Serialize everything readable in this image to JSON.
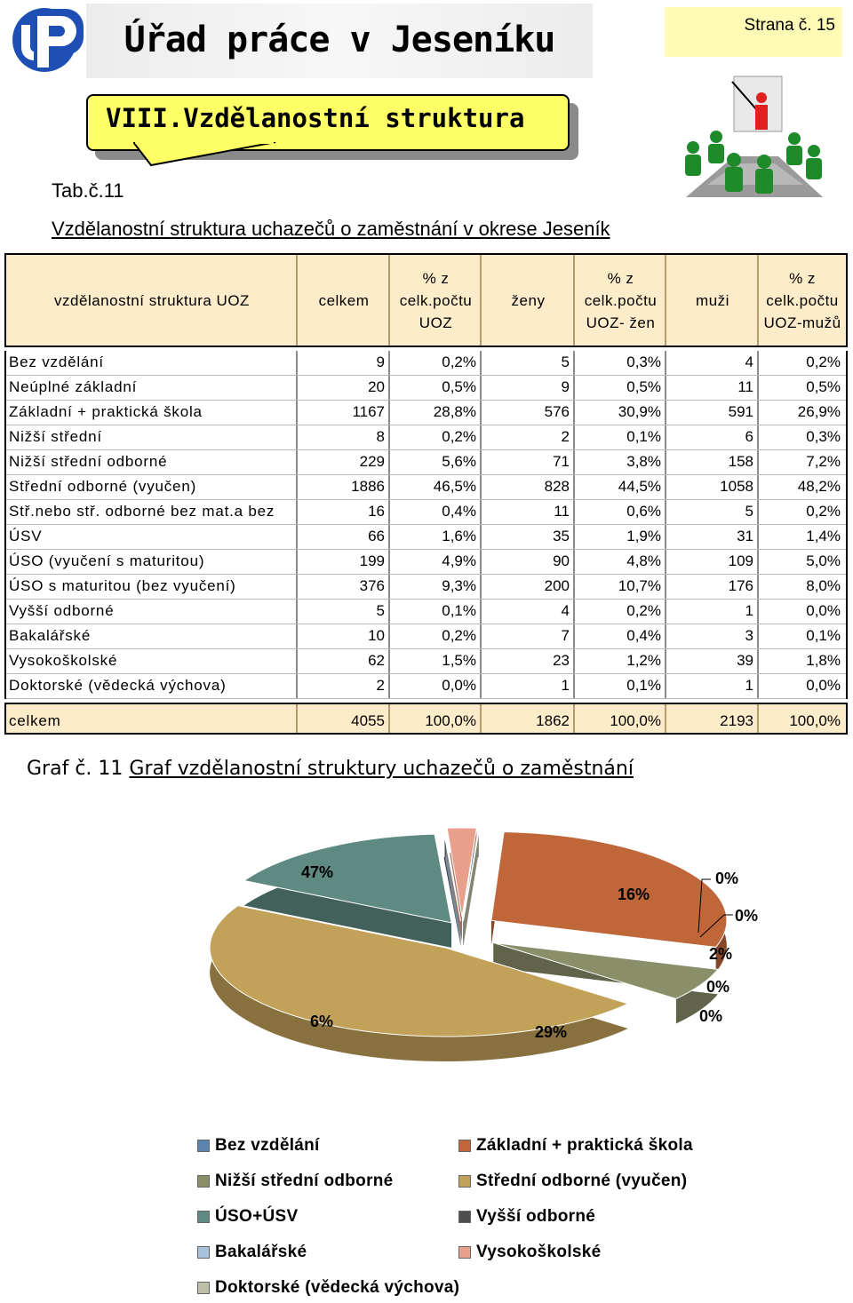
{
  "header": {
    "office_title": "Úřad práce v Jeseníku",
    "page_number": "Strana č. 15",
    "section_title": "VIII.Vzdělanostní struktura"
  },
  "table_label": "Tab.č.11",
  "table_caption": "Vzdělanostní struktura uchazečů o zaměstnání v okrese Jeseník",
  "table": {
    "headers": [
      "vzdělanostní struktura UOZ",
      "celkem",
      "% z celk.počtu UOZ",
      "ženy",
      "% z celk.počtu UOZ- žen",
      "muži",
      "% z celk.počtu UOZ-mužů"
    ],
    "rows": [
      [
        "Bez vzdělání",
        "9",
        "0,2%",
        "5",
        "0,3%",
        "4",
        "0,2%"
      ],
      [
        "Neúplné základní",
        "20",
        "0,5%",
        "9",
        "0,5%",
        "11",
        "0,5%"
      ],
      [
        "Základní + praktická škola",
        "1167",
        "28,8%",
        "576",
        "30,9%",
        "591",
        "26,9%"
      ],
      [
        "Nižší střední",
        "8",
        "0,2%",
        "2",
        "0,1%",
        "6",
        "0,3%"
      ],
      [
        "Nižší střední odborné",
        "229",
        "5,6%",
        "71",
        "3,8%",
        "158",
        "7,2%"
      ],
      [
        "Střední odborné (vyučen)",
        "1886",
        "46,5%",
        "828",
        "44,5%",
        "1058",
        "48,2%"
      ],
      [
        "Stř.nebo stř. odborné bez mat.a bez",
        "16",
        "0,4%",
        "11",
        "0,6%",
        "5",
        "0,2%"
      ],
      [
        "ÚSV",
        "66",
        "1,6%",
        "35",
        "1,9%",
        "31",
        "1,4%"
      ],
      [
        "ÚSO (vyučení s maturitou)",
        "199",
        "4,9%",
        "90",
        "4,8%",
        "109",
        "5,0%"
      ],
      [
        "ÚSO s maturitou (bez vyučení)",
        "376",
        "9,3%",
        "200",
        "10,7%",
        "176",
        "8,0%"
      ],
      [
        "Vyšší odborné",
        "5",
        "0,1%",
        "4",
        "0,2%",
        "1",
        "0,0%"
      ],
      [
        "Bakalářské",
        "10",
        "0,2%",
        "7",
        "0,4%",
        "3",
        "0,1%"
      ],
      [
        "Vysokoškolské",
        "62",
        "1,5%",
        "23",
        "1,2%",
        "39",
        "1,8%"
      ],
      [
        "Doktorské (vědecká výchova)",
        "2",
        "0,0%",
        "1",
        "0,1%",
        "1",
        "0,0%"
      ]
    ],
    "total": [
      "celkem",
      "4055",
      "100,0%",
      "1862",
      "100,0%",
      "2193",
      "100,0%"
    ]
  },
  "graph_caption_prefix": "Graf č. 11",
  "graph_caption_title": "Graf vzdělanostní struktury uchazečů o zaměstnání",
  "chart_data": {
    "type": "pie",
    "title": "",
    "categories": [
      "Bez vzdělání",
      "Základní + praktická škola",
      "Nižší střední odborné",
      "Střední odborné (vyučen)",
      "ÚSO+ÚSV",
      "Vyšší odborné",
      "Bakalářské",
      "Vysokoškolské",
      "Doktorské (vědecká výchova)"
    ],
    "values": [
      0,
      29,
      6,
      47,
      16,
      0,
      0,
      2,
      0
    ],
    "data_labels": [
      "0%",
      "29%",
      "6%",
      "47%",
      "16%",
      "0%",
      "0%",
      "2%",
      "0%"
    ],
    "colors": [
      "#5b83ad",
      "#c0673a",
      "#8a8f69",
      "#c2a258",
      "#5e8a82",
      "#4e4e4e",
      "#a7c2d9",
      "#e8a08d",
      "#bdbfa6"
    ],
    "legend_position": "bottom"
  },
  "colors": {
    "title_band": "#ececec",
    "page_box": "#fdfbb6",
    "section_box": "#ffff66",
    "table_header": "#fdecc9",
    "logo_blue": "#1f4fb4"
  },
  "icons": {
    "logo": "labour-office-logo-icon",
    "classroom": "classroom-presentation-icon"
  }
}
